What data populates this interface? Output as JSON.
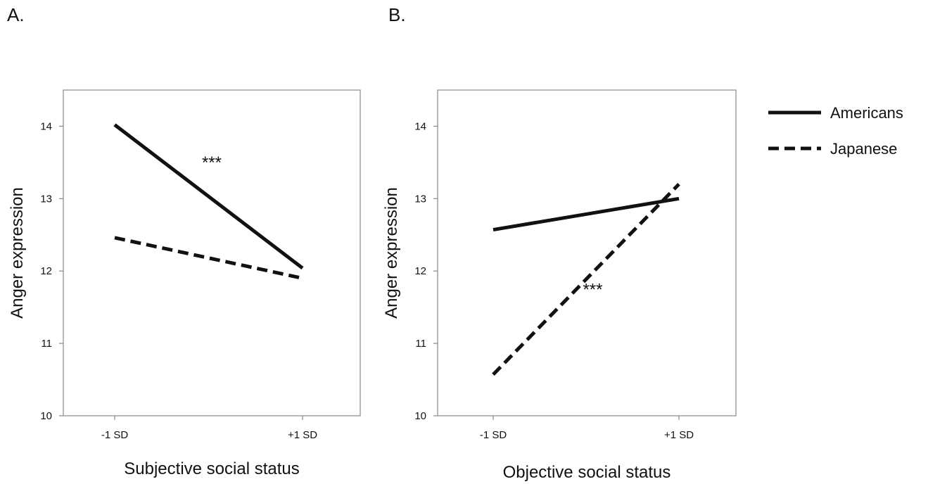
{
  "chart_data": [
    {
      "type": "line",
      "panel": "A.",
      "xlabel": "Subjective social status",
      "ylabel": "Anger expression",
      "categories": [
        "-1 SD",
        "+1 SD"
      ],
      "ylim": [
        10,
        14.5
      ],
      "yticks": [
        10,
        11,
        12,
        13,
        14
      ],
      "grid": false,
      "series": [
        {
          "name": "Americans",
          "style": "solid",
          "values": [
            14.02,
            12.04
          ]
        },
        {
          "name": "Japanese",
          "style": "dashed",
          "values": [
            12.46,
            11.9
          ]
        }
      ],
      "annotations": [
        {
          "text": "***",
          "series": "Americans"
        }
      ]
    },
    {
      "type": "line",
      "panel": "B.",
      "xlabel": "Objective social status",
      "ylabel": "Anger expression",
      "categories": [
        "-1 SD",
        "+1 SD"
      ],
      "ylim": [
        10,
        14.5
      ],
      "yticks": [
        10,
        11,
        12,
        13,
        14
      ],
      "grid": false,
      "series": [
        {
          "name": "Americans",
          "style": "solid",
          "values": [
            12.57,
            13.0
          ]
        },
        {
          "name": "Japanese",
          "style": "dashed",
          "values": [
            10.57,
            13.2
          ]
        }
      ],
      "annotations": [
        {
          "text": "***",
          "series": "Japanese"
        }
      ]
    }
  ],
  "legend": {
    "position": "right",
    "items": [
      {
        "label": "Americans",
        "style": "solid"
      },
      {
        "label": "Japanese",
        "style": "dashed"
      }
    ]
  },
  "colors": {
    "line": "#111111",
    "frame": "#888888",
    "background": "#ffffff"
  }
}
